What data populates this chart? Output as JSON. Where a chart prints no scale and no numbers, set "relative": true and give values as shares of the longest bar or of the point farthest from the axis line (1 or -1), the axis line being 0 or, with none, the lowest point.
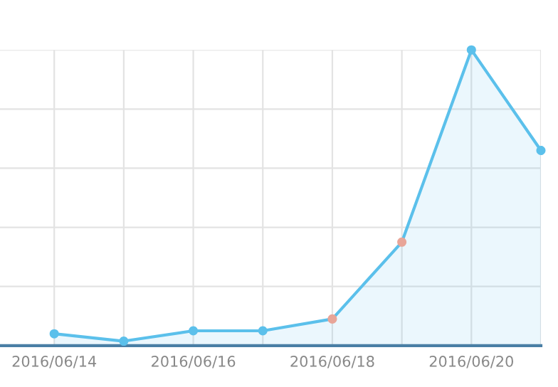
{
  "chart_data": {
    "type": "area",
    "relative": true,
    "categories": [
      "2016/06/14",
      null,
      "2016/06/16",
      null,
      "2016/06/18",
      null,
      "2016/06/20",
      null
    ],
    "series": [
      {
        "color": "#5bc0eb",
        "colors": [
          "#5bc0eb",
          "#5bc0eb",
          "#5bc0eb",
          "#5bc0eb",
          "#e8a598",
          "#e8a598",
          "#5bc0eb",
          "#5bc0eb"
        ],
        "values": [
          0.04,
          0.015,
          0.05,
          0.05,
          0.09,
          0.35,
          1,
          0.66
        ]
      }
    ],
    "grid": true,
    "marker": "circle"
  }
}
